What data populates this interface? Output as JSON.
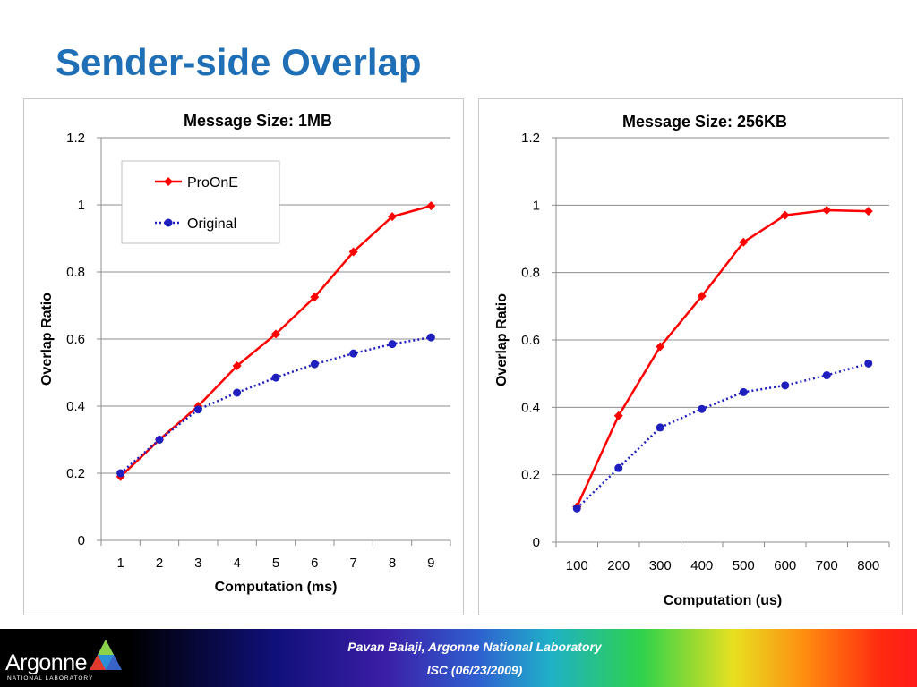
{
  "slide": {
    "title": "Sender-side Overlap"
  },
  "footer": {
    "line1": "Pavan Balaji, Argonne National Laboratory",
    "line2": "ISC (06/23/2009)",
    "logo_text": "Argonne",
    "logo_subtext": "NATIONAL LABORATORY"
  },
  "colors": {
    "title": "#1f6fb7",
    "proone": "#ff0000",
    "original": "#1f1fbf"
  },
  "chart_data": [
    {
      "type": "line",
      "title": "Message Size: 1MB",
      "xlabel": "Computation (ms)",
      "ylabel": "Overlap Ratio",
      "categories": [
        "1",
        "2",
        "3",
        "4",
        "5",
        "6",
        "7",
        "8",
        "9"
      ],
      "ylim": [
        0,
        1.2
      ],
      "yticks": [
        "0",
        "0.2",
        "0.4",
        "0.6",
        "0.8",
        "1",
        "1.2"
      ],
      "grid": true,
      "legend": "top-left",
      "series": [
        {
          "name": "ProOnE",
          "values": [
            0.19,
            0.3,
            0.4,
            0.52,
            0.615,
            0.725,
            0.86,
            0.965,
            0.997
          ]
        },
        {
          "name": "Original",
          "values": [
            0.2,
            0.3,
            0.39,
            0.44,
            0.485,
            0.525,
            0.557,
            0.585,
            0.605
          ]
        }
      ]
    },
    {
      "type": "line",
      "title": "Message Size: 256KB",
      "xlabel": "Computation (us)",
      "ylabel": "Overlap Ratio",
      "categories": [
        "100",
        "200",
        "300",
        "400",
        "500",
        "600",
        "700",
        "800"
      ],
      "ylim": [
        0,
        1.2
      ],
      "yticks": [
        "0",
        "0.2",
        "0.4",
        "0.6",
        "0.8",
        "1",
        "1.2"
      ],
      "grid": true,
      "legend": "",
      "series": [
        {
          "name": "ProOnE",
          "values": [
            0.105,
            0.375,
            0.58,
            0.73,
            0.89,
            0.97,
            0.985,
            0.982
          ]
        },
        {
          "name": "Original",
          "values": [
            0.1,
            0.22,
            0.34,
            0.395,
            0.445,
            0.465,
            0.495,
            0.53
          ]
        }
      ]
    }
  ]
}
